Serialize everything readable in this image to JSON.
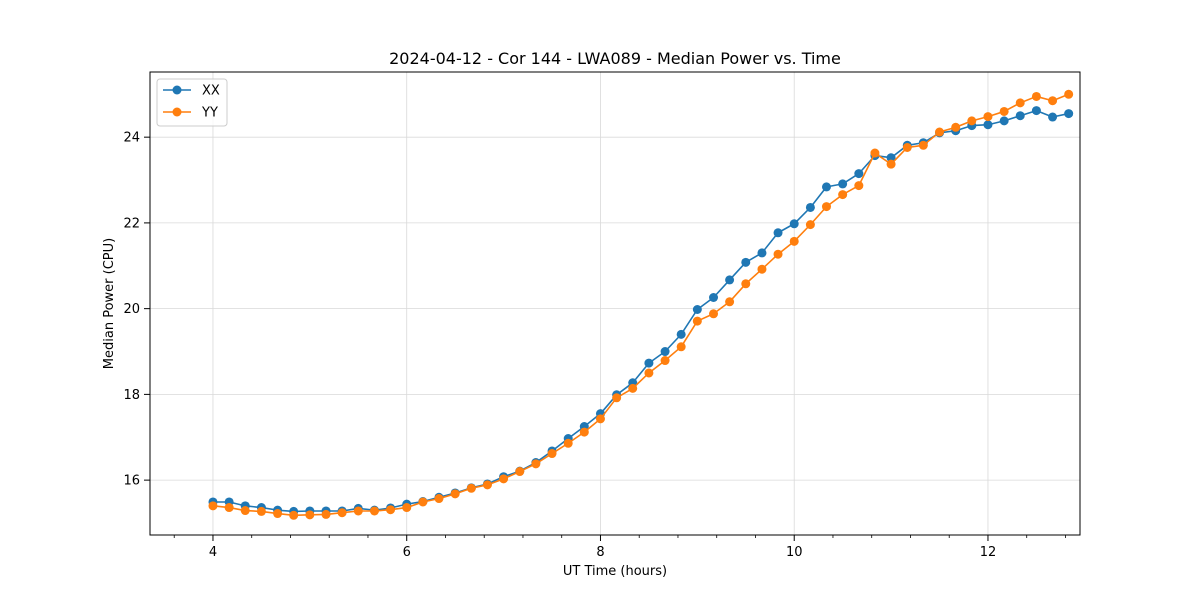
{
  "chart_data": {
    "type": "line",
    "title": "2024-04-12 - Cor 144 - LWA089 - Median Power vs. Time",
    "xlabel": "UT Time (hours)",
    "ylabel": "Median Power (CPU)",
    "xlim": [
      3.35,
      12.95
    ],
    "ylim": [
      14.72,
      25.52
    ],
    "xticks": [
      4,
      6,
      8,
      10,
      12
    ],
    "xtick_labels": [
      "4",
      "6",
      "8",
      "10",
      "12"
    ],
    "yticks": [
      16,
      18,
      20,
      22,
      24
    ],
    "ytick_labels": [
      "16",
      "18",
      "20",
      "22",
      "24"
    ],
    "grid": true,
    "legend_position": "top-left",
    "colors": {
      "xx": "#1f77b4",
      "yy": "#ff7f0e",
      "grid": "#d9d9d9",
      "axis": "#000000"
    },
    "x": [
      4.0,
      4.167,
      4.333,
      4.5,
      4.667,
      4.833,
      5.0,
      5.167,
      5.333,
      5.5,
      5.667,
      5.833,
      6.0,
      6.167,
      6.333,
      6.5,
      6.667,
      6.833,
      7.0,
      7.167,
      7.333,
      7.5,
      7.667,
      7.833,
      8.0,
      8.167,
      8.333,
      8.5,
      8.667,
      8.833,
      9.0,
      9.167,
      9.333,
      9.5,
      9.667,
      9.833,
      10.0,
      10.167,
      10.333,
      10.5,
      10.667,
      10.833,
      11.0,
      11.167,
      11.333,
      11.5,
      11.667,
      11.833,
      12.0,
      12.167,
      12.333,
      12.5,
      12.667,
      12.833
    ],
    "series": [
      {
        "name": "XX",
        "color": "#1f77b4",
        "values": [
          15.49,
          15.49,
          15.4,
          15.36,
          15.3,
          15.27,
          15.28,
          15.28,
          15.28,
          15.34,
          15.3,
          15.35,
          15.44,
          15.5,
          15.6,
          15.7,
          15.82,
          15.91,
          16.08,
          16.21,
          16.41,
          16.68,
          16.97,
          17.25,
          17.55,
          17.99,
          18.27,
          18.73,
          19.0,
          19.4,
          19.98,
          20.26,
          20.67,
          21.08,
          21.3,
          21.77,
          21.98,
          22.36,
          22.84,
          22.91,
          23.15,
          23.57,
          23.52,
          23.81,
          23.87,
          24.1,
          24.15,
          24.27,
          24.29,
          24.38,
          24.5,
          24.62,
          24.47,
          24.55
        ]
      },
      {
        "name": "YY",
        "color": "#ff7f0e",
        "values": [
          15.4,
          15.36,
          15.29,
          15.27,
          15.22,
          15.18,
          15.19,
          15.2,
          15.24,
          15.28,
          15.28,
          15.31,
          15.36,
          15.49,
          15.57,
          15.68,
          15.81,
          15.89,
          16.03,
          16.2,
          16.38,
          16.62,
          16.86,
          17.12,
          17.43,
          17.92,
          18.14,
          18.5,
          18.79,
          19.11,
          19.71,
          19.88,
          20.16,
          20.58,
          20.92,
          21.27,
          21.57,
          21.96,
          22.38,
          22.66,
          22.87,
          23.63,
          23.37,
          23.76,
          23.81,
          24.12,
          24.23,
          24.38,
          24.48,
          24.6,
          24.8,
          24.95,
          24.85,
          25.0
        ]
      }
    ]
  }
}
